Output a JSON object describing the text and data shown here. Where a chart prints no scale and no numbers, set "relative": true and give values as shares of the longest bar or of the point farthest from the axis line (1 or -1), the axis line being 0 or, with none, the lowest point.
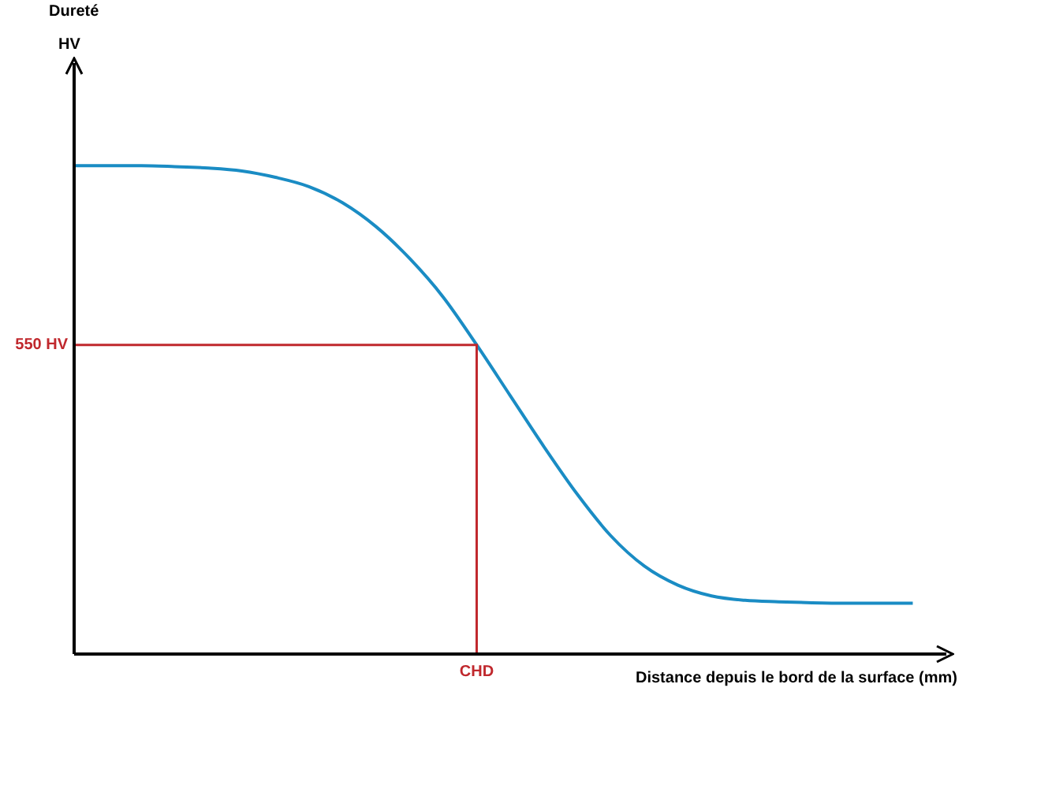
{
  "chart_data": {
    "type": "line",
    "relative": true,
    "xlabel": "Distance depuis le bord de la surface (mm)",
    "annotations": [
      "Dureté",
      "HV",
      "CHD"
    ],
    "categories": [
      null,
      null,
      null,
      null,
      null,
      null,
      null,
      null,
      null,
      null,
      null,
      null,
      null,
      null,
      null,
      null,
      null,
      null,
      null,
      null,
      null,
      null,
      null,
      null,
      null,
      null
    ],
    "series": [
      {
        "color": "#1a8cc4",
        "values": [
          1,
          1,
          1,
          0.998,
          0.995,
          0.989,
          0.976,
          0.957,
          0.924,
          0.875,
          0.81,
          0.731,
          0.633,
          0.529,
          0.425,
          0.327,
          0.242,
          0.18,
          0.141,
          0.119,
          0.11,
          0.107,
          0.105,
          0.104,
          0.104,
          0.104
        ]
      }
    ],
    "ref_lines": [
      {
        "axis": "y",
        "value": 0.633,
        "label": "550 HV",
        "color": "#c0282d"
      }
    ],
    "marker": "none",
    "line_style": "solid",
    "tick_labels": false
  }
}
